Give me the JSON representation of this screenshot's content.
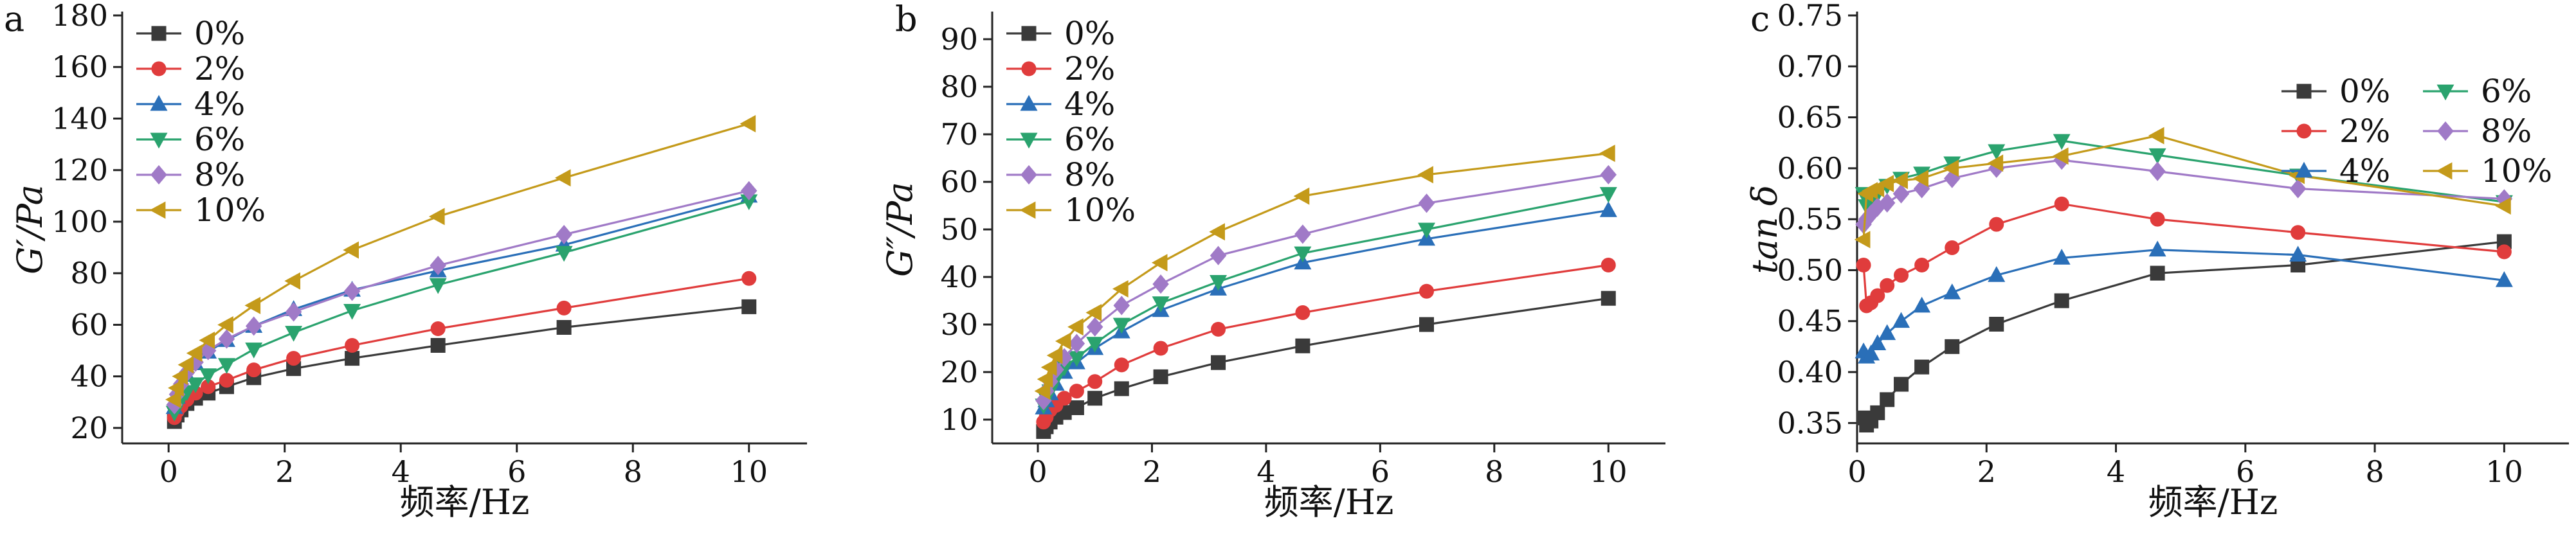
{
  "chart_data": [
    {
      "panel_label": "a",
      "type": "line",
      "ylabel": "G′/Pa",
      "xlabel": "频率/Hz",
      "xlim": [
        -0.8,
        11
      ],
      "ylim": [
        14,
        180
      ],
      "xticks": [
        0,
        2,
        4,
        6,
        8,
        10
      ],
      "yticks": [
        20,
        40,
        60,
        80,
        100,
        120,
        140,
        160,
        180
      ],
      "legend": {
        "position": "top-left",
        "columns": 1
      },
      "x": [
        0.1,
        0.146,
        0.215,
        0.316,
        0.464,
        0.681,
        1.0,
        1.468,
        2.154,
        3.162,
        4.642,
        6.813,
        10.0
      ],
      "series": [
        {
          "name": "0%",
          "color": "#3a3a3a",
          "marker": "square",
          "values": [
            22.5,
            25,
            27,
            29.5,
            31.5,
            33.5,
            36,
            39.5,
            43,
            47,
            52,
            59,
            67
          ]
        },
        {
          "name": "2%",
          "color": "#e03c3c",
          "marker": "circle",
          "values": [
            24,
            26.5,
            28.5,
            31,
            33.5,
            36,
            38.5,
            42.5,
            47,
            52,
            58.5,
            66.5,
            78
          ]
        },
        {
          "name": "4%",
          "color": "#2a6fb8",
          "marker": "triangle-up",
          "values": [
            28,
            32,
            36,
            40.5,
            45,
            49.5,
            54,
            59.5,
            66,
            73.5,
            81,
            91,
            110
          ]
        },
        {
          "name": "6%",
          "color": "#2aa36e",
          "marker": "triangle-down",
          "values": [
            26,
            28.5,
            31,
            34,
            37,
            40.5,
            44.5,
            50.5,
            57,
            65.5,
            75.5,
            88,
            108
          ]
        },
        {
          "name": "8%",
          "color": "#a07ac7",
          "marker": "diamond",
          "values": [
            29,
            33,
            37,
            41.5,
            45.5,
            50,
            54.5,
            59.5,
            65,
            73,
            83,
            95,
            112
          ]
        },
        {
          "name": "10%",
          "color": "#c49a1a",
          "marker": "triangle-left",
          "values": [
            31,
            35.5,
            40,
            44.5,
            49,
            54,
            60,
            67.5,
            77,
            89,
            102,
            117,
            138
          ]
        }
      ]
    },
    {
      "panel_label": "b",
      "type": "line",
      "ylabel": "G″/Pa",
      "xlabel": "频率/Hz",
      "xlim": [
        -0.8,
        11
      ],
      "ylim": [
        5,
        95
      ],
      "xticks": [
        0,
        2,
        4,
        6,
        8,
        10
      ],
      "yticks": [
        10,
        20,
        30,
        40,
        50,
        60,
        70,
        80,
        90
      ],
      "legend": {
        "position": "top-left",
        "columns": 1
      },
      "x": [
        0.1,
        0.146,
        0.215,
        0.316,
        0.464,
        0.681,
        1.0,
        1.468,
        2.154,
        3.162,
        4.642,
        6.813,
        10.0
      ],
      "series": [
        {
          "name": "0%",
          "color": "#3a3a3a",
          "marker": "square",
          "values": [
            7.5,
            8.5,
            9.5,
            10.5,
            11.5,
            12.5,
            14.5,
            16.5,
            19,
            22,
            25.5,
            30,
            35.5
          ]
        },
        {
          "name": "2%",
          "color": "#e03c3c",
          "marker": "circle",
          "values": [
            9.5,
            10.5,
            12,
            13,
            14.5,
            16,
            18,
            21.5,
            25,
            29,
            32.5,
            37,
            42.5
          ]
        },
        {
          "name": "4%",
          "color": "#2a6fb8",
          "marker": "triangle-up",
          "values": [
            12.5,
            14,
            15.5,
            17.5,
            20,
            22,
            25,
            28.5,
            33,
            37.5,
            43,
            48,
            54
          ]
        },
        {
          "name": "6%",
          "color": "#2aa36e",
          "marker": "triangle-down",
          "values": [
            13,
            14.5,
            16,
            18.5,
            21,
            23,
            26,
            30,
            34.5,
            39,
            45,
            50,
            57.5
          ]
        },
        {
          "name": "8%",
          "color": "#a07ac7",
          "marker": "diamond",
          "values": [
            14,
            16,
            18,
            20.5,
            23,
            26,
            29.5,
            34,
            38.5,
            44.5,
            49,
            55.5,
            61.5
          ]
        },
        {
          "name": "10%",
          "color": "#c49a1a",
          "marker": "triangle-left",
          "values": [
            16,
            18.5,
            21,
            23.5,
            26.5,
            29.5,
            32.5,
            37.5,
            43,
            49.5,
            57,
            61.5,
            66
          ]
        }
      ]
    },
    {
      "panel_label": "c",
      "type": "line",
      "ylabel": "tan δ",
      "xlabel": "频率/Hz",
      "xlim": [
        0,
        11
      ],
      "ylim": [
        0.33,
        0.75
      ],
      "xticks": [
        0,
        2,
        4,
        6,
        8,
        10
      ],
      "yticks": [
        0.35,
        0.4,
        0.45,
        0.5,
        0.55,
        0.6,
        0.65,
        0.7,
        0.75
      ],
      "legend": {
        "position": "top-right",
        "columns": 2
      },
      "x": [
        0.1,
        0.146,
        0.215,
        0.316,
        0.464,
        0.681,
        1.0,
        1.468,
        2.154,
        3.162,
        4.642,
        6.813,
        10.0
      ],
      "series": [
        {
          "name": "0%",
          "color": "#3a3a3a",
          "marker": "square",
          "values": [
            0.355,
            0.348,
            0.352,
            0.36,
            0.373,
            0.388,
            0.405,
            0.425,
            0.447,
            0.47,
            0.497,
            0.505,
            0.528
          ]
        },
        {
          "name": "2%",
          "color": "#e03c3c",
          "marker": "circle",
          "values": [
            0.505,
            0.465,
            0.468,
            0.475,
            0.485,
            0.495,
            0.505,
            0.522,
            0.545,
            0.565,
            0.55,
            0.537,
            0.518
          ]
        },
        {
          "name": "4%",
          "color": "#2a6fb8",
          "marker": "triangle-up",
          "values": [
            0.42,
            0.415,
            0.418,
            0.428,
            0.438,
            0.45,
            0.465,
            0.478,
            0.495,
            0.512,
            0.52,
            0.515,
            0.49
          ]
        },
        {
          "name": "6%",
          "color": "#2aa36e",
          "marker": "triangle-down",
          "values": [
            0.575,
            0.563,
            0.567,
            0.575,
            0.583,
            0.59,
            0.595,
            0.605,
            0.617,
            0.627,
            0.613,
            0.593,
            0.567
          ]
        },
        {
          "name": "8%",
          "color": "#a07ac7",
          "marker": "diamond",
          "values": [
            0.545,
            0.55,
            0.555,
            0.562,
            0.566,
            0.575,
            0.58,
            0.59,
            0.6,
            0.608,
            0.597,
            0.58,
            0.57
          ]
        },
        {
          "name": "10%",
          "color": "#c49a1a",
          "marker": "triangle-left",
          "values": [
            0.53,
            0.575,
            0.578,
            0.58,
            0.585,
            0.588,
            0.59,
            0.6,
            0.605,
            0.612,
            0.632,
            0.593,
            0.563
          ]
        }
      ]
    }
  ]
}
